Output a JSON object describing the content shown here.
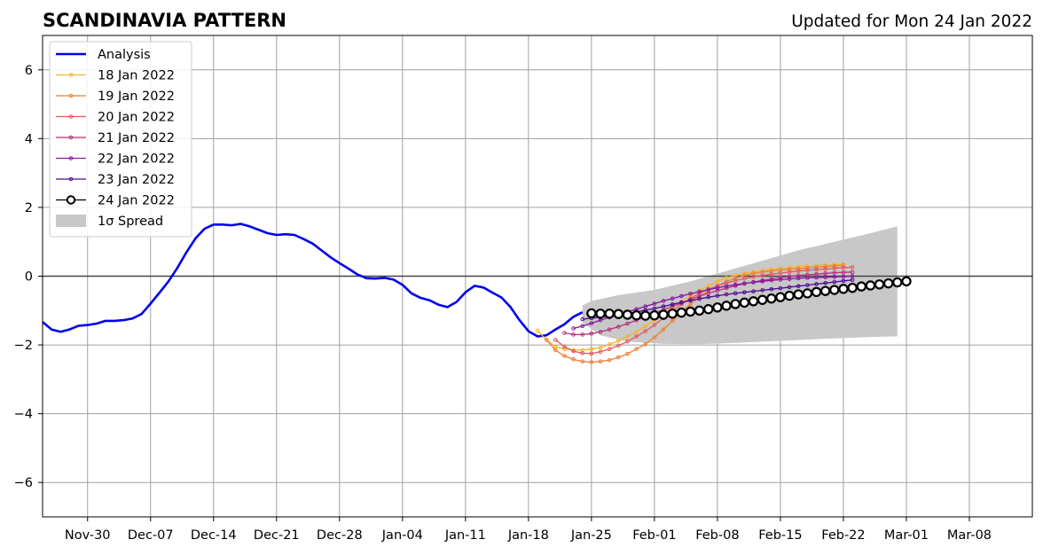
{
  "header": {
    "title": "SCANDINAVIA PATTERN",
    "subtitle": "Updated for Mon 24 Jan 2022"
  },
  "chart_data": {
    "type": "line",
    "title": "SCANDINAVIA PATTERN",
    "subtitle": "Updated for Mon 24 Jan 2022",
    "xlabel": "",
    "ylabel": "",
    "xlim": [
      "2021-11-25",
      "2022-03-15"
    ],
    "ylim": [
      -7,
      7
    ],
    "grid": true,
    "legend_position": "top-left",
    "x_ticks": [
      {
        "date": "2021-11-30",
        "label": "Nov-30"
      },
      {
        "date": "2021-12-07",
        "label": "Dec-07"
      },
      {
        "date": "2021-12-14",
        "label": "Dec-14"
      },
      {
        "date": "2021-12-21",
        "label": "Dec-21"
      },
      {
        "date": "2021-12-28",
        "label": "Dec-28"
      },
      {
        "date": "2022-01-04",
        "label": "Jan-04"
      },
      {
        "date": "2022-01-11",
        "label": "Jan-11"
      },
      {
        "date": "2022-01-18",
        "label": "Jan-18"
      },
      {
        "date": "2022-01-25",
        "label": "Jan-25"
      },
      {
        "date": "2022-02-01",
        "label": "Feb-01"
      },
      {
        "date": "2022-02-08",
        "label": "Feb-08"
      },
      {
        "date": "2022-02-15",
        "label": "Feb-15"
      },
      {
        "date": "2022-02-22",
        "label": "Feb-22"
      },
      {
        "date": "2022-03-01",
        "label": "Mar-01"
      },
      {
        "date": "2022-03-08",
        "label": "Mar-08"
      }
    ],
    "y_ticks": [
      {
        "value": 6,
        "label": "6"
      },
      {
        "value": 4,
        "label": "4"
      },
      {
        "value": 2,
        "label": "2"
      },
      {
        "value": 0,
        "label": "0"
      },
      {
        "value": -2,
        "label": "−2"
      },
      {
        "value": -4,
        "label": "−4"
      },
      {
        "value": -6,
        "label": "−6"
      }
    ],
    "analysis": {
      "name": "Analysis",
      "color": "#0000ee",
      "start": "2021-11-25",
      "values": [
        -1.33,
        -1.55,
        -1.62,
        -1.55,
        -1.44,
        -1.42,
        -1.38,
        -1.3,
        -1.3,
        -1.28,
        -1.23,
        -1.1,
        -0.8,
        -0.48,
        -0.15,
        0.25,
        0.7,
        1.1,
        1.38,
        1.5,
        1.5,
        1.48,
        1.52,
        1.45,
        1.35,
        1.25,
        1.2,
        1.22,
        1.2,
        1.08,
        0.95,
        0.75,
        0.55,
        0.38,
        0.22,
        0.05,
        -0.06,
        -0.07,
        -0.05,
        -0.1,
        -0.25,
        -0.5,
        -0.63,
        -0.7,
        -0.83,
        -0.9,
        -0.75,
        -0.47,
        -0.28,
        -0.33,
        -0.48,
        -0.62,
        -0.9,
        -1.28,
        -1.6,
        -1.75,
        -1.72,
        -1.55,
        -1.4,
        -1.18,
        -1.05
      ]
    },
    "forecasts": [
      {
        "name": "18 Jan 2022",
        "color": "#f5b42c",
        "start": "2022-01-19",
        "values": [
          -1.58,
          -1.85,
          -2.05,
          -2.12,
          -2.15,
          -2.15,
          -2.12,
          -2.08,
          -1.98,
          -1.88,
          -1.75,
          -1.62,
          -1.45,
          -1.28,
          -1.1,
          -0.92,
          -0.75,
          -0.58,
          -0.42,
          -0.28,
          -0.15,
          -0.05,
          0.02,
          0.08,
          0.12,
          0.16,
          0.2,
          0.22,
          0.25,
          0.27,
          0.29,
          0.31,
          0.32,
          0.33,
          0.34
        ]
      },
      {
        "name": "19 Jan 2022",
        "color": "#ee7f35",
        "start": "2022-01-20",
        "values": [
          -1.85,
          -2.15,
          -2.32,
          -2.42,
          -2.48,
          -2.5,
          -2.48,
          -2.44,
          -2.36,
          -2.26,
          -2.12,
          -1.98,
          -1.78,
          -1.55,
          -1.3,
          -1.05,
          -0.82,
          -0.6,
          -0.42,
          -0.28,
          -0.16,
          -0.06,
          0.02,
          0.08,
          0.12,
          0.15,
          0.18,
          0.2,
          0.22,
          0.24,
          0.26,
          0.28,
          0.3,
          0.32
        ]
      },
      {
        "name": "20 Jan 2022",
        "color": "#e25a63",
        "start": "2022-01-21",
        "values": [
          -1.85,
          -2.05,
          -2.18,
          -2.24,
          -2.25,
          -2.2,
          -2.12,
          -2.02,
          -1.9,
          -1.75,
          -1.6,
          -1.42,
          -1.22,
          -1.02,
          -0.82,
          -0.65,
          -0.5,
          -0.38,
          -0.28,
          -0.2,
          -0.13,
          -0.07,
          -0.02,
          0.02,
          0.06,
          0.09,
          0.12,
          0.15,
          0.17,
          0.19,
          0.21,
          0.23,
          0.25,
          0.26
        ]
      },
      {
        "name": "21 Jan 2022",
        "color": "#b8327c",
        "start": "2022-01-22",
        "values": [
          -1.65,
          -1.7,
          -1.7,
          -1.67,
          -1.62,
          -1.55,
          -1.47,
          -1.38,
          -1.28,
          -1.18,
          -1.08,
          -0.98,
          -0.88,
          -0.78,
          -0.68,
          -0.58,
          -0.5,
          -0.42,
          -0.35,
          -0.28,
          -0.22,
          -0.17,
          -0.12,
          -0.08,
          -0.04,
          -0.01,
          0.02,
          0.04,
          0.06,
          0.08,
          0.1,
          0.11,
          0.12
        ]
      },
      {
        "name": "22 Jan 2022",
        "color": "#86169f",
        "start": "2022-01-23",
        "values": [
          -1.52,
          -1.45,
          -1.37,
          -1.28,
          -1.2,
          -1.12,
          -1.04,
          -0.96,
          -0.88,
          -0.8,
          -0.72,
          -0.65,
          -0.58,
          -0.51,
          -0.45,
          -0.39,
          -0.34,
          -0.29,
          -0.25,
          -0.21,
          -0.18,
          -0.15,
          -0.12,
          -0.1,
          -0.08,
          -0.06,
          -0.05,
          -0.04,
          -0.03,
          -0.02,
          -0.01,
          0.0
        ]
      },
      {
        "name": "23 Jan 2022",
        "color": "#4b0a91",
        "start": "2022-01-24",
        "values": [
          -1.25,
          -1.22,
          -1.2,
          -1.17,
          -1.13,
          -1.09,
          -1.04,
          -0.99,
          -0.94,
          -0.88,
          -0.82,
          -0.76,
          -0.71,
          -0.66,
          -0.61,
          -0.57,
          -0.53,
          -0.5,
          -0.47,
          -0.44,
          -0.41,
          -0.38,
          -0.35,
          -0.32,
          -0.29,
          -0.26,
          -0.23,
          -0.2,
          -0.17,
          -0.14,
          -0.11
        ]
      },
      {
        "name": "24 Jan 2022",
        "color": "#000000",
        "start": "2022-01-25",
        "values": [
          -1.08,
          -1.09,
          -1.09,
          -1.1,
          -1.12,
          -1.14,
          -1.15,
          -1.14,
          -1.12,
          -1.09,
          -1.06,
          -1.03,
          -1.0,
          -0.96,
          -0.91,
          -0.86,
          -0.81,
          -0.77,
          -0.73,
          -0.69,
          -0.65,
          -0.61,
          -0.57,
          -0.53,
          -0.5,
          -0.46,
          -0.43,
          -0.4,
          -0.37,
          -0.34,
          -0.3,
          -0.27,
          -0.24,
          -0.21,
          -0.18,
          -0.15
        ]
      }
    ],
    "spread": {
      "name": "1σ Spread",
      "color": "#c8c8c8",
      "upper": [
        [
          "2022-01-24",
          -0.85
        ],
        [
          "2022-01-25",
          -0.72
        ],
        [
          "2022-01-28",
          -0.55
        ],
        [
          "2022-02-01",
          -0.4
        ],
        [
          "2022-02-05",
          -0.15
        ],
        [
          "2022-02-09",
          0.15
        ],
        [
          "2022-02-13",
          0.45
        ],
        [
          "2022-02-17",
          0.75
        ],
        [
          "2022-02-21",
          1.0
        ],
        [
          "2022-02-25",
          1.25
        ],
        [
          "2022-02-28",
          1.45
        ]
      ],
      "lower": [
        [
          "2022-01-24",
          -1.35
        ],
        [
          "2022-01-26",
          -1.72
        ],
        [
          "2022-01-29",
          -1.9
        ],
        [
          "2022-02-02",
          -1.97
        ],
        [
          "2022-02-06",
          -1.98
        ],
        [
          "2022-02-10",
          -1.94
        ],
        [
          "2022-02-15",
          -1.88
        ],
        [
          "2022-02-20",
          -1.82
        ],
        [
          "2022-02-25",
          -1.77
        ],
        [
          "2022-02-28",
          -1.75
        ]
      ]
    },
    "reference_line": {
      "y": 0
    }
  }
}
